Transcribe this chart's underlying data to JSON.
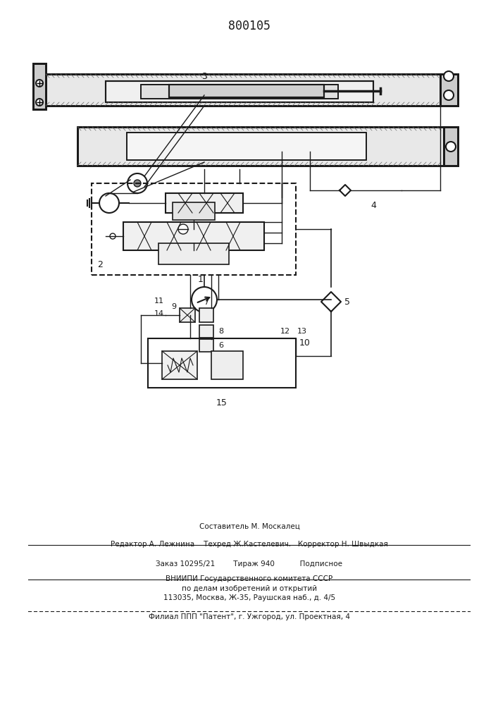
{
  "patent_number": "800105",
  "bg_color": "#ffffff",
  "line_color": "#1a1a1a",
  "figsize": [
    7.07,
    10.0
  ],
  "dpi": 100,
  "footer_lines": [
    "Составитель М. Москалец",
    "Редактор А. Лежнина    Техред Ж.Кастелевич.   Корректор Н. Швыдкая",
    "Заказ 10295/21        Тираж 940           Подписное",
    "ВНИИПИ Государственного комитета СССР",
    "по делам изобретений и открытий",
    "113035, Москва, Ж-35, Раушская наб., д. 4/5",
    "Филиал ППП \"Патент\", г. Ужгород, ул. Проектная, 4"
  ]
}
